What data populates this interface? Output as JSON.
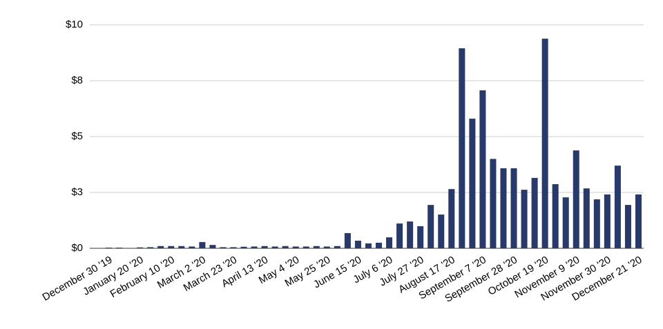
{
  "chart_data": {
    "type": "bar",
    "categories": [
      "December 30 '19",
      null,
      null,
      "January 20 '20",
      null,
      null,
      "February 10 '20",
      null,
      null,
      "March 2 '20",
      null,
      null,
      "March 23 '20",
      null,
      null,
      "April 13 '20",
      null,
      null,
      "May 4 '20",
      null,
      null,
      "May 25 '20",
      null,
      null,
      "June 15 '20",
      null,
      null,
      "July 6 '20",
      null,
      null,
      "July 27 '20",
      null,
      null,
      "August 17 '20",
      null,
      null,
      "September 7 '20",
      null,
      null,
      "September 28 '20",
      null,
      null,
      "October 19 '20",
      null,
      null,
      "November 9 '20",
      null,
      null,
      "November 30 '20",
      null,
      null,
      "December 21 '20"
    ],
    "values": [
      0.03,
      0.03,
      0.01,
      0.04,
      0.05,
      0.1,
      0.1,
      0.1,
      0.08,
      0.28,
      0.15,
      0.05,
      0.05,
      0.07,
      0.08,
      0.1,
      0.08,
      0.1,
      0.08,
      0.08,
      0.1,
      0.08,
      0.1,
      0.68,
      0.34,
      0.22,
      0.25,
      0.49,
      1.11,
      1.2,
      0.99,
      1.94,
      1.51,
      2.65,
      8.95,
      5.8,
      7.07,
      4.0,
      3.58,
      3.58,
      2.62,
      3.15,
      9.38,
      2.87,
      2.28,
      4.38,
      2.68,
      2.19,
      2.41,
      3.7,
      1.94,
      2.41
    ],
    "color": "#283a6b",
    "ylim": [
      0,
      10
    ],
    "yticks": [
      {
        "value": 0,
        "label": "$0"
      },
      {
        "value": 2.5,
        "label": "$3"
      },
      {
        "value": 5,
        "label": "$5"
      },
      {
        "value": 7.5,
        "label": "$8"
      },
      {
        "value": 10,
        "label": "$10"
      }
    ],
    "grid": true
  }
}
